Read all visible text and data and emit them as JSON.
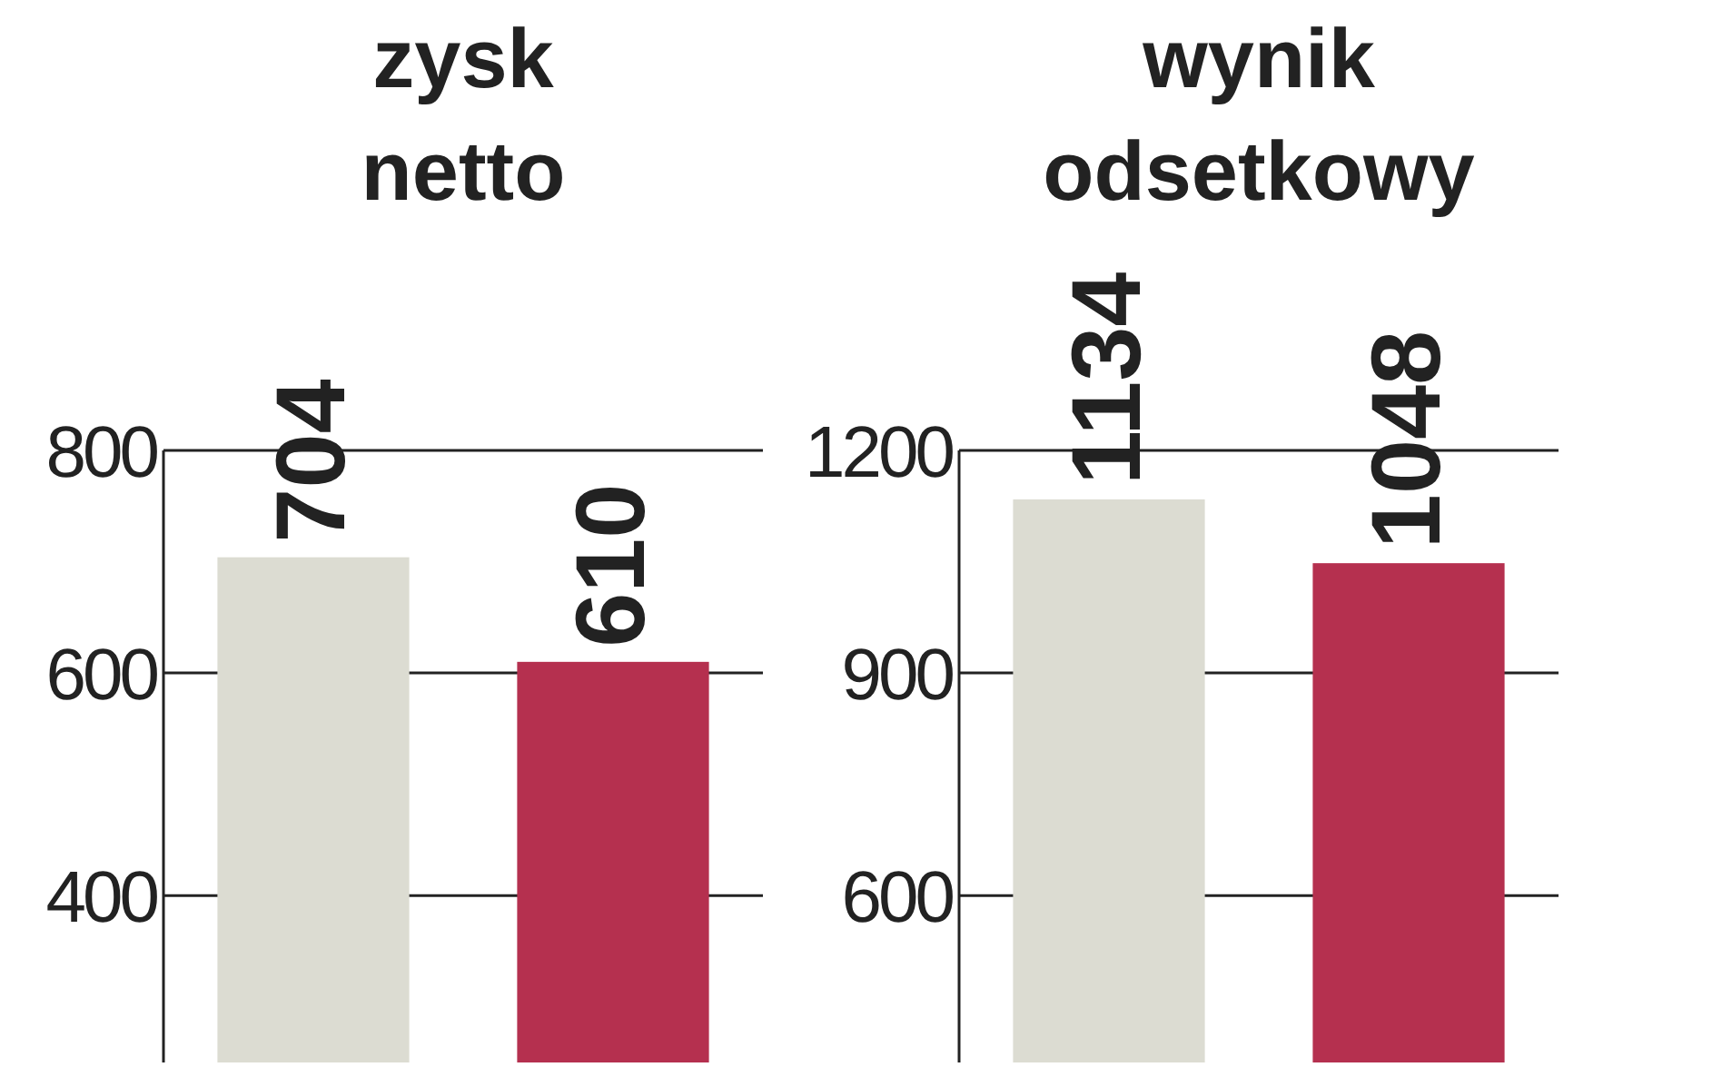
{
  "chart_data": [
    {
      "type": "bar",
      "title": "zysk netto",
      "categories": [
        null,
        null
      ],
      "values": [
        704,
        610
      ],
      "colors": [
        "#dcdcd2",
        "#b5304f"
      ],
      "ylim": [
        250,
        800
      ],
      "yticks": [
        400,
        600,
        800
      ],
      "grid": "y",
      "data_labels": true
    },
    {
      "type": "bar",
      "title": "wynik odsetkowy",
      "categories": [
        null,
        null
      ],
      "values": [
        1134,
        1048
      ],
      "colors": [
        "#dcdcd2",
        "#b5304f"
      ],
      "ylim": [
        375,
        1200
      ],
      "yticks": [
        600,
        900,
        1200
      ],
      "grid": "y",
      "data_labels": true
    }
  ]
}
